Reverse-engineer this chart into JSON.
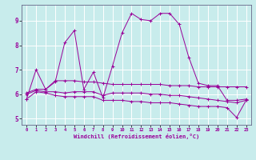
{
  "xlabel": "Windchill (Refroidissement éolien,°C)",
  "bg_color": "#c8ecec",
  "line_color": "#990099",
  "grid_color": "#ffffff",
  "spine_color": "#666688",
  "xlim": [
    -0.5,
    23.5
  ],
  "ylim": [
    4.75,
    9.65
  ],
  "xticks": [
    0,
    1,
    2,
    3,
    4,
    5,
    6,
    7,
    8,
    9,
    10,
    11,
    12,
    13,
    14,
    15,
    16,
    17,
    18,
    19,
    20,
    21,
    22,
    23
  ],
  "yticks": [
    5,
    6,
    7,
    8,
    9
  ],
  "hours": [
    0,
    1,
    2,
    3,
    4,
    5,
    6,
    7,
    8,
    9,
    10,
    11,
    12,
    13,
    14,
    15,
    16,
    17,
    18,
    19,
    20,
    21,
    22,
    23
  ],
  "line1": [
    5.8,
    7.0,
    6.2,
    6.5,
    8.1,
    8.6,
    6.2,
    6.9,
    5.85,
    7.15,
    8.5,
    9.3,
    9.05,
    9.0,
    9.3,
    9.3,
    8.85,
    7.5,
    6.45,
    6.35,
    6.35,
    5.75,
    5.75,
    5.8
  ],
  "line2": [
    6.05,
    6.2,
    6.2,
    6.55,
    6.55,
    6.55,
    6.5,
    6.5,
    6.45,
    6.4,
    6.4,
    6.4,
    6.4,
    6.4,
    6.4,
    6.35,
    6.35,
    6.35,
    6.3,
    6.3,
    6.3,
    6.3,
    6.3,
    6.3
  ],
  "line3": [
    6.0,
    6.15,
    6.1,
    6.1,
    6.05,
    6.1,
    6.1,
    6.1,
    5.95,
    6.05,
    6.05,
    6.05,
    6.05,
    6.0,
    6.0,
    5.95,
    5.95,
    5.9,
    5.85,
    5.8,
    5.75,
    5.7,
    5.65,
    5.75
  ],
  "line4": [
    5.8,
    6.1,
    6.05,
    5.95,
    5.9,
    5.9,
    5.9,
    5.9,
    5.75,
    5.75,
    5.75,
    5.7,
    5.7,
    5.65,
    5.65,
    5.65,
    5.6,
    5.55,
    5.5,
    5.5,
    5.5,
    5.45,
    5.05,
    5.75
  ]
}
